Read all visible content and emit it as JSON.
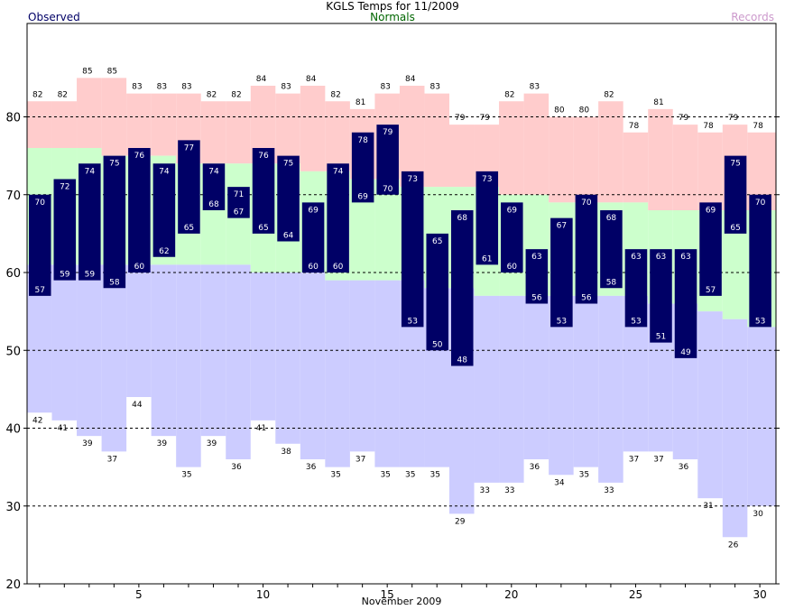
{
  "chart_data": {
    "type": "bar",
    "title": "KGLS Temps for 11/2009",
    "xlabel": "November 2009",
    "ylabel": "",
    "ylim": [
      20,
      92
    ],
    "x_ticks": [
      5,
      10,
      15,
      20,
      25,
      30
    ],
    "y_ticks": [
      20,
      30,
      40,
      50,
      60,
      70,
      80
    ],
    "grid": "dashed horizontal",
    "legend": [
      {
        "name": "Observed",
        "color": "#000066",
        "position": "top-left"
      },
      {
        "name": "Normals",
        "color": "#006600",
        "position": "top-center"
      },
      {
        "name": "Records",
        "color": "#cc99cc",
        "position": "top-right"
      }
    ],
    "days": [
      1,
      2,
      3,
      4,
      5,
      6,
      7,
      8,
      9,
      10,
      11,
      12,
      13,
      14,
      15,
      16,
      17,
      18,
      19,
      20,
      21,
      22,
      23,
      24,
      25,
      26,
      27,
      28,
      29,
      30
    ],
    "record_high": [
      82,
      82,
      85,
      85,
      83,
      83,
      83,
      82,
      82,
      84,
      83,
      84,
      82,
      81,
      83,
      84,
      83,
      79,
      79,
      82,
      83,
      80,
      80,
      82,
      78,
      81,
      79,
      78,
      79,
      78
    ],
    "record_low": [
      42,
      41,
      39,
      37,
      44,
      39,
      35,
      39,
      36,
      41,
      38,
      36,
      35,
      37,
      35,
      35,
      35,
      29,
      33,
      33,
      36,
      34,
      35,
      33,
      37,
      37,
      36,
      31,
      26,
      30
    ],
    "normal_high": [
      76,
      76,
      76,
      75,
      75,
      75,
      74,
      74,
      74,
      74,
      74,
      73,
      73,
      72,
      72,
      71,
      71,
      71,
      71,
      70,
      70,
      69,
      69,
      69,
      69,
      68,
      68,
      68,
      68,
      68
    ],
    "normal_low": [
      61,
      61,
      61,
      61,
      61,
      61,
      61,
      61,
      61,
      60,
      60,
      60,
      59,
      59,
      59,
      59,
      58,
      58,
      57,
      57,
      57,
      57,
      57,
      57,
      57,
      56,
      56,
      55,
      54,
      53
    ],
    "observed_high": [
      70,
      72,
      74,
      75,
      76,
      74,
      77,
      74,
      71,
      76,
      75,
      69,
      74,
      78,
      79,
      73,
      65,
      68,
      73,
      69,
      63,
      67,
      70,
      68,
      63,
      63,
      63,
      69,
      75,
      70
    ],
    "observed_low": [
      57,
      59,
      59,
      58,
      60,
      62,
      65,
      68,
      67,
      65,
      64,
      60,
      60,
      69,
      70,
      53,
      50,
      48,
      61,
      60,
      56,
      53,
      56,
      58,
      53,
      51,
      49,
      57,
      65,
      53
    ],
    "colors": {
      "observed": "#000066",
      "normal": "#ccffcc",
      "record_high_band": "#ffcccc",
      "record_low_band": "#ccccff",
      "gridline": "#000000"
    }
  }
}
